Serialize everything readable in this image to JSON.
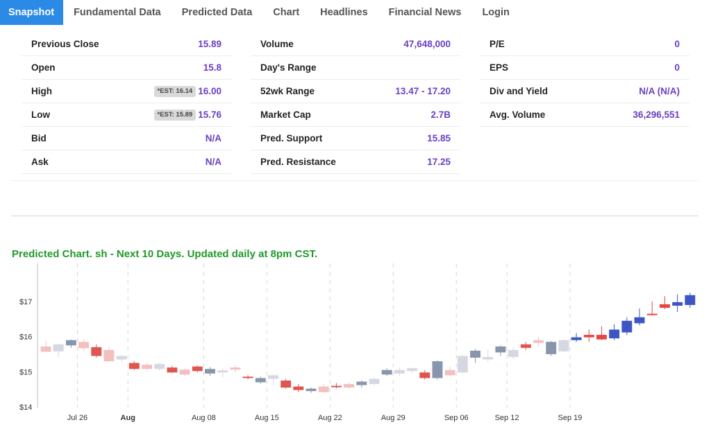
{
  "tabs": [
    {
      "label": "Snapshot",
      "active": true
    },
    {
      "label": "Fundamental Data"
    },
    {
      "label": "Predicted Data"
    },
    {
      "label": "Chart"
    },
    {
      "label": "Headlines"
    },
    {
      "label": "Financial News"
    },
    {
      "label": "Login"
    }
  ],
  "stats": {
    "col1": [
      {
        "label": "Previous Close",
        "value": "15.89"
      },
      {
        "label": "Open",
        "value": "15.8"
      },
      {
        "label": "High",
        "est": "*EST: 16.14",
        "value": "16.00"
      },
      {
        "label": "Low",
        "est": "*EST: 15.89",
        "value": "15.76"
      },
      {
        "label": "Bid",
        "value": "N/A"
      },
      {
        "label": "Ask",
        "value": "N/A"
      }
    ],
    "col2": [
      {
        "label": "Volume",
        "value": "47,648,000"
      },
      {
        "label": "Day's Range",
        "value": ""
      },
      {
        "label": "52wk Range",
        "value": "13.47 - 17.20"
      },
      {
        "label": "Market Cap",
        "value": "2.7B"
      },
      {
        "label": "Pred. Support",
        "value": "15.85"
      },
      {
        "label": "Pred. Resistance",
        "value": "17.25"
      }
    ],
    "col3": [
      {
        "label": "P/E",
        "value": "0"
      },
      {
        "label": "EPS",
        "value": "0"
      },
      {
        "label": "Div and Yield",
        "value": "N/A (N/A)"
      },
      {
        "label": "Avg. Volume",
        "value": "36,296,551"
      }
    ]
  },
  "chart_title": "Predicted Chart. sh - Next 10 Days. Updated daily at 8pm CST.",
  "chart_data": {
    "type": "candlestick",
    "ylim": [
      14,
      18
    ],
    "y_ticks": [
      {
        "value": 14,
        "label": "$14"
      },
      {
        "value": 15,
        "label": "$15"
      },
      {
        "value": 16,
        "label": "$16"
      },
      {
        "value": 17,
        "label": "$17"
      }
    ],
    "x_ticks": [
      {
        "index": 2.5,
        "label": "Jul 26",
        "bold": false
      },
      {
        "index": 6.5,
        "label": "Aug",
        "bold": true
      },
      {
        "index": 12.5,
        "label": "Aug 08",
        "bold": false
      },
      {
        "index": 17.5,
        "label": "Aug 15",
        "bold": false
      },
      {
        "index": 22.5,
        "label": "Aug 22",
        "bold": false
      },
      {
        "index": 27.5,
        "label": "Aug 29",
        "bold": false
      },
      {
        "index": 32.5,
        "label": "Sep 06",
        "bold": false
      },
      {
        "index": 36.5,
        "label": "Sep 12",
        "bold": false
      },
      {
        "index": 41.5,
        "label": "Sep 19",
        "bold": false
      }
    ],
    "colors": {
      "hist_up": "#8896ac",
      "hist_down": "#f3c0c0",
      "hist_up_light": "#d5d8e0",
      "pred_up": "#3f55c4",
      "pred_down": "#e8453f",
      "recent_down": "#e05550"
    },
    "candles": [
      {
        "o": 15.72,
        "h": 15.88,
        "l": 15.55,
        "c": 15.57,
        "k": "hist_down"
      },
      {
        "o": 15.58,
        "h": 15.8,
        "l": 15.42,
        "c": 15.78,
        "k": "hist_up_light"
      },
      {
        "o": 15.75,
        "h": 15.92,
        "l": 15.68,
        "c": 15.9,
        "k": "hist_up"
      },
      {
        "o": 15.85,
        "h": 15.92,
        "l": 15.6,
        "c": 15.67,
        "k": "hist_down"
      },
      {
        "o": 15.7,
        "h": 15.78,
        "l": 15.4,
        "c": 15.45,
        "k": "recent_down"
      },
      {
        "o": 15.62,
        "h": 15.7,
        "l": 15.28,
        "c": 15.3,
        "k": "hist_down"
      },
      {
        "o": 15.35,
        "h": 15.48,
        "l": 15.28,
        "c": 15.45,
        "k": "hist_up_light"
      },
      {
        "o": 15.25,
        "h": 15.3,
        "l": 15.05,
        "c": 15.08,
        "k": "recent_down"
      },
      {
        "o": 15.2,
        "h": 15.25,
        "l": 15.05,
        "c": 15.08,
        "k": "hist_down"
      },
      {
        "o": 15.08,
        "h": 15.26,
        "l": 15.03,
        "c": 15.22,
        "k": "hist_up_light"
      },
      {
        "o": 15.12,
        "h": 15.17,
        "l": 14.96,
        "c": 14.98,
        "k": "recent_down"
      },
      {
        "o": 15.06,
        "h": 15.1,
        "l": 14.88,
        "c": 14.92,
        "k": "hist_down"
      },
      {
        "o": 15.02,
        "h": 15.18,
        "l": 14.98,
        "c": 15.15,
        "k": "recent_down"
      },
      {
        "o": 14.95,
        "h": 15.14,
        "l": 14.88,
        "c": 15.08,
        "k": "hist_up"
      },
      {
        "o": 14.98,
        "h": 15.1,
        "l": 14.85,
        "c": 15.04,
        "k": "hist_up_light"
      },
      {
        "o": 15.12,
        "h": 15.18,
        "l": 14.98,
        "c": 15.06,
        "k": "hist_down"
      },
      {
        "o": 14.86,
        "h": 14.9,
        "l": 14.78,
        "c": 14.82,
        "k": "recent_down"
      },
      {
        "o": 14.7,
        "h": 14.86,
        "l": 14.66,
        "c": 14.82,
        "k": "hist_up"
      },
      {
        "o": 14.8,
        "h": 14.92,
        "l": 14.62,
        "c": 14.9,
        "k": "hist_up_light"
      },
      {
        "o": 14.75,
        "h": 14.8,
        "l": 14.52,
        "c": 14.55,
        "k": "recent_down"
      },
      {
        "o": 14.58,
        "h": 14.65,
        "l": 14.42,
        "c": 14.48,
        "k": "recent_down"
      },
      {
        "o": 14.45,
        "h": 14.55,
        "l": 14.4,
        "c": 14.52,
        "k": "hist_up"
      },
      {
        "o": 14.58,
        "h": 14.65,
        "l": 14.4,
        "c": 14.42,
        "k": "hist_down"
      },
      {
        "o": 14.6,
        "h": 14.68,
        "l": 14.52,
        "c": 14.56,
        "k": "recent_down"
      },
      {
        "o": 14.65,
        "h": 14.7,
        "l": 14.52,
        "c": 14.55,
        "k": "hist_down"
      },
      {
        "o": 14.62,
        "h": 14.75,
        "l": 14.55,
        "c": 14.72,
        "k": "hist_up"
      },
      {
        "o": 14.65,
        "h": 14.85,
        "l": 14.6,
        "c": 14.8,
        "k": "hist_up_light"
      },
      {
        "o": 14.92,
        "h": 15.1,
        "l": 14.88,
        "c": 15.05,
        "k": "hist_up"
      },
      {
        "o": 14.95,
        "h": 15.12,
        "l": 14.88,
        "c": 15.05,
        "k": "hist_up_light"
      },
      {
        "o": 15.02,
        "h": 15.12,
        "l": 14.95,
        "c": 15.1,
        "k": "hist_up_light"
      },
      {
        "o": 14.98,
        "h": 15.05,
        "l": 14.78,
        "c": 14.82,
        "k": "recent_down"
      },
      {
        "o": 14.82,
        "h": 15.32,
        "l": 14.78,
        "c": 15.3,
        "k": "hist_up"
      },
      {
        "o": 15.05,
        "h": 15.15,
        "l": 14.88,
        "c": 14.9,
        "k": "hist_down"
      },
      {
        "o": 14.98,
        "h": 15.48,
        "l": 14.95,
        "c": 15.45,
        "k": "hist_up_light"
      },
      {
        "o": 15.4,
        "h": 15.65,
        "l": 15.25,
        "c": 15.6,
        "k": "hist_up"
      },
      {
        "o": 15.35,
        "h": 15.62,
        "l": 15.28,
        "c": 15.42,
        "k": "hist_up_light"
      },
      {
        "o": 15.55,
        "h": 15.75,
        "l": 15.45,
        "c": 15.72,
        "k": "hist_up"
      },
      {
        "o": 15.42,
        "h": 15.7,
        "l": 15.36,
        "c": 15.62,
        "k": "hist_up_light"
      },
      {
        "o": 15.78,
        "h": 15.85,
        "l": 15.62,
        "c": 15.68,
        "k": "recent_down"
      },
      {
        "o": 15.9,
        "h": 15.98,
        "l": 15.72,
        "c": 15.82,
        "k": "hist_down"
      },
      {
        "o": 15.5,
        "h": 15.88,
        "l": 15.45,
        "c": 15.85,
        "k": "hist_up"
      },
      {
        "o": 15.58,
        "h": 15.92,
        "l": 15.55,
        "c": 15.9,
        "k": "hist_up_light"
      },
      {
        "o": 15.9,
        "h": 16.1,
        "l": 15.85,
        "c": 15.98,
        "k": "pred_up"
      },
      {
        "o": 16.05,
        "h": 16.2,
        "l": 15.85,
        "c": 15.98,
        "k": "pred_down"
      },
      {
        "o": 16.05,
        "h": 16.3,
        "l": 15.9,
        "c": 15.92,
        "k": "pred_down"
      },
      {
        "o": 15.95,
        "h": 16.35,
        "l": 15.9,
        "c": 16.2,
        "k": "pred_up"
      },
      {
        "o": 16.12,
        "h": 16.55,
        "l": 16.05,
        "c": 16.45,
        "k": "pred_up"
      },
      {
        "o": 16.38,
        "h": 16.8,
        "l": 16.32,
        "c": 16.55,
        "k": "pred_up"
      },
      {
        "o": 16.62,
        "h": 17.0,
        "l": 16.6,
        "c": 16.65,
        "k": "pred_down"
      },
      {
        "o": 16.92,
        "h": 17.15,
        "l": 16.78,
        "c": 16.82,
        "k": "pred_down"
      },
      {
        "o": 16.88,
        "h": 17.2,
        "l": 16.7,
        "c": 16.98,
        "k": "pred_up"
      },
      {
        "o": 16.9,
        "h": 17.25,
        "l": 16.82,
        "c": 17.18,
        "k": "pred_up"
      }
    ]
  }
}
